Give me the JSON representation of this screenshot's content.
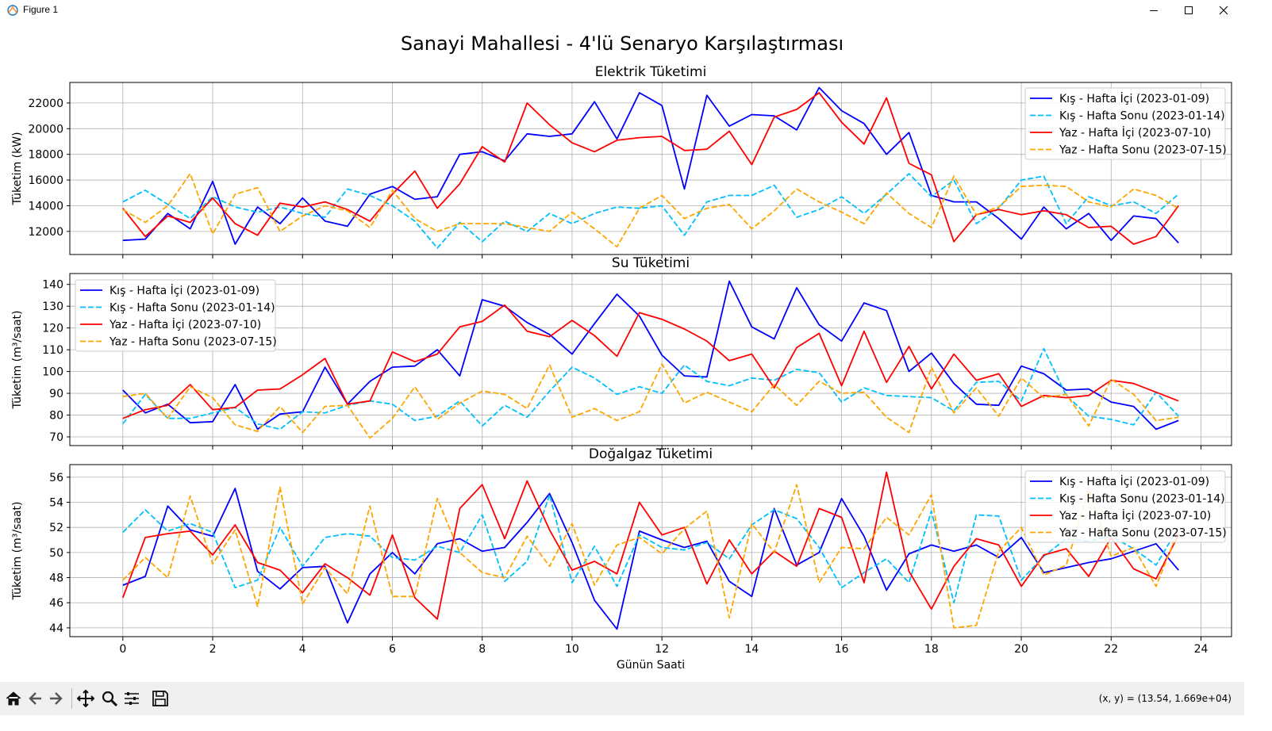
{
  "window": {
    "title": "Figure 1"
  },
  "toolbar": {
    "tools": [
      "home-icon",
      "back-icon",
      "forward-icon",
      "pan-icon",
      "zoom-icon",
      "configure-subplots-icon",
      "save-icon"
    ],
    "coords": "(x, y) = (13.54, 1.669e+04)"
  },
  "colors": {
    "kis_hafta_ici": "#0000ff",
    "kis_hafta_sonu": "#00bfff",
    "yaz_hafta_ici": "#ff0000",
    "yaz_hafta_sonu": "#ffa500"
  },
  "chart_data": {
    "suptitle": "Sanayi Mahallesi - 4'lü Senaryo Karşılaştırması",
    "xlabel": "Günün Saati",
    "x": [
      0,
      0.5,
      1,
      1.5,
      2,
      2.5,
      3,
      3.5,
      4,
      4.5,
      5,
      5.5,
      6,
      6.5,
      7,
      7.5,
      8,
      8.5,
      9,
      9.5,
      10,
      10.5,
      11,
      11.5,
      12,
      12.5,
      13,
      13.5,
      14,
      14.5,
      15,
      15.5,
      16,
      16.5,
      17,
      17.5,
      18,
      18.5,
      19,
      19.5,
      20,
      20.5,
      21,
      21.5,
      22,
      22.5,
      23,
      23.5
    ],
    "xticks": [
      0,
      2,
      4,
      6,
      8,
      10,
      12,
      14,
      16,
      18,
      20,
      22,
      24
    ],
    "xlim": [
      -1.18,
      24.68
    ],
    "legend_labels": [
      "Kış - Hafta İçi (2023-01-09)",
      "Kış - Hafta Sonu (2023-01-14)",
      "Yaz - Hafta İçi (2023-07-10)",
      "Yaz - Hafta Sonu (2023-07-15)"
    ],
    "series_styles": [
      {
        "color": "#0000ff",
        "dash": "solid"
      },
      {
        "color": "#00bfff",
        "dash": "dashed"
      },
      {
        "color": "#ff0000",
        "dash": "solid"
      },
      {
        "color": "#ffa500",
        "dash": "dashed"
      }
    ],
    "subplots": [
      {
        "type": "line",
        "title": "Elektrik Tüketimi",
        "ylabel": "Tüketim (kW)",
        "ylim": [
          10200,
          23600
        ],
        "yticks": [
          12000,
          14000,
          16000,
          18000,
          20000,
          22000
        ],
        "legend": "upper-right",
        "series": [
          {
            "values": [
              11300,
              11400,
              13400,
              12200,
              15900,
              11000,
              13900,
              12600,
              14600,
              12800,
              12400,
              14900,
              15500,
              14500,
              14700,
              18000,
              18200,
              17500,
              19600,
              19400,
              19600,
              22100,
              19200,
              22800,
              21800,
              15300,
              22600,
              20200,
              21100,
              21000,
              19900,
              23200,
              21400,
              20400,
              18000,
              19700,
              14800,
              14300,
              14300,
              13000,
              11400,
              13900,
              12200,
              13400,
              11300,
              13200,
              13000,
              11100
            ]
          },
          {
            "values": [
              14300,
              15200,
              14100,
              13000,
              14700,
              13900,
              13500,
              13900,
              13400,
              13100,
              15300,
              14800,
              14000,
              12800,
              10700,
              12700,
              11200,
              12800,
              12000,
              13400,
              12600,
              13400,
              13900,
              13800,
              14000,
              11700,
              14300,
              14800,
              14800,
              15600,
              13100,
              13700,
              14700,
              13400,
              14900,
              16500,
              14700,
              16000,
              12600,
              13800,
              16000,
              16300,
              12600,
              14700,
              14000,
              14300,
              13400,
              14900
            ]
          },
          {
            "values": [
              13800,
              11600,
              13200,
              12700,
              14600,
              12600,
              11700,
              14200,
              13900,
              14300,
              13700,
              12800,
              14900,
              16700,
              13800,
              15700,
              18600,
              17400,
              22000,
              20300,
              18900,
              18200,
              19100,
              19300,
              19400,
              18300,
              18400,
              19800,
              17200,
              20900,
              21500,
              22800,
              20500,
              18800,
              22400,
              17300,
              16400,
              11200,
              13300,
              13700,
              13300,
              13600,
              13300,
              12300,
              12400,
              11000,
              11600,
              14000
            ]
          },
          {
            "values": [
              13700,
              12700,
              14000,
              16500,
              11800,
              14900,
              15400,
              12000,
              13200,
              14000,
              13600,
              12300,
              15200,
              13000,
              12000,
              12600,
              12600,
              12600,
              12300,
              12000,
              13500,
              12200,
              10800,
              13800,
              14800,
              13000,
              13800,
              14100,
              12200,
              13600,
              15300,
              14300,
              13500,
              12600,
              15000,
              13400,
              12300,
              16300,
              13300,
              13900,
              15500,
              15600,
              15500,
              14300,
              13900,
              15300,
              14800,
              13800
            ]
          }
        ]
      },
      {
        "type": "line",
        "title": "Su Tüketimi",
        "ylabel": "Tüketim (m³/saat)",
        "ylim": [
          66,
          145
        ],
        "yticks": [
          70,
          80,
          90,
          100,
          110,
          120,
          130,
          140
        ],
        "legend": "upper-left",
        "series": [
          {
            "values": [
              91.5,
              81,
              85,
              76.5,
              77,
              94,
              73.5,
              80.5,
              81.5,
              102,
              85,
              95.5,
              102,
              102.5,
              110,
              98,
              133,
              130,
              122.5,
              117,
              108,
              122,
              135.5,
              125.5,
              107.5,
              98,
              97.5,
              141.5,
              120.5,
              115,
              138.5,
              121.5,
              114,
              131.5,
              128,
              100,
              108.5,
              94.5,
              85,
              84.5,
              102.5,
              99,
              91.5,
              92,
              86,
              84,
              73.5,
              77.5
            ]
          },
          {
            "values": [
              76,
              89.5,
              78.5,
              78.5,
              81,
              83.5,
              76,
              73.5,
              81.5,
              81,
              84.5,
              86.5,
              85,
              77.5,
              79.5,
              86.5,
              75,
              84.5,
              79,
              91,
              102,
              97,
              89.5,
              93,
              90,
              103,
              95.5,
              93.5,
              97,
              96,
              101,
              99.5,
              86,
              92.5,
              89,
              88.5,
              88,
              82,
              95,
              95.5,
              86.5,
              110.5,
              89,
              79.5,
              78,
              75.5,
              90.5,
              79.5
            ]
          },
          {
            "values": [
              78.5,
              82.5,
              84.5,
              94,
              82.5,
              83.5,
              91.5,
              92,
              98.5,
              106,
              85,
              86.5,
              109,
              104.5,
              108,
              120.5,
              123,
              130.5,
              118.5,
              116,
              123.5,
              116.5,
              107,
              127,
              124,
              119.5,
              114,
              105,
              108,
              92.5,
              111,
              117.5,
              93.5,
              118.5,
              95,
              111.5,
              92,
              108,
              96,
              99,
              84,
              89,
              88,
              89,
              96,
              94.5,
              90.5,
              86.5
            ]
          },
          {
            "values": [
              88.5,
              90,
              78.5,
              93,
              88,
              75.5,
              72.5,
              84,
              72,
              84,
              84.5,
              69.5,
              78.5,
              93,
              78,
              85.5,
              91,
              89.5,
              83,
              103,
              79,
              83,
              77.5,
              81.5,
              103.5,
              85.5,
              90.5,
              86,
              81.5,
              94,
              84.5,
              95.5,
              90,
              90.5,
              79,
              72,
              102,
              81,
              92.5,
              79.5,
              97,
              88,
              89.5,
              75,
              96.5,
              89.5,
              77.5,
              79
            ]
          }
        ]
      },
      {
        "type": "line",
        "title": "Doğalgaz Tüketimi",
        "ylabel": "Tüketim (m³/saat)",
        "ylim": [
          43.3,
          57.0
        ],
        "yticks": [
          44,
          46,
          48,
          50,
          52,
          54,
          56
        ],
        "legend": "upper-right",
        "series": [
          {
            "values": [
              47.4,
              48.1,
              53.7,
              51.8,
              51.3,
              55.1,
              48.5,
              47.1,
              48.8,
              48.9,
              44.4,
              48.3,
              50.0,
              48.3,
              50.7,
              51.1,
              50.1,
              50.4,
              52.4,
              54.7,
              50.8,
              46.2,
              43.9,
              51.7,
              51.0,
              50.4,
              50.9,
              47.7,
              46.5,
              53.5,
              49.0,
              50.0,
              54.3,
              51.3,
              47.0,
              49.9,
              50.6,
              50.1,
              50.6,
              49.6,
              51.2,
              48.4,
              48.8,
              49.2,
              49.5,
              50.1,
              50.7,
              48.6
            ]
          },
          {
            "values": [
              51.6,
              53.4,
              51.7,
              52.3,
              51.6,
              47.2,
              47.8,
              52.0,
              48.9,
              51.2,
              51.5,
              51.3,
              49.6,
              49.4,
              50.5,
              50.0,
              53.0,
              47.7,
              49.3,
              54.6,
              47.6,
              50.5,
              47.3,
              51.4,
              50.4,
              50.2,
              50.8,
              49.5,
              52.2,
              53.4,
              52.7,
              50.4,
              47.2,
              48.4,
              49.5,
              47.6,
              53.3,
              46.0,
              53.0,
              52.9,
              47.8,
              49.7,
              51.1,
              50.9,
              51.3,
              50.3,
              49.0,
              52.0
            ]
          },
          {
            "values": [
              46.4,
              51.2,
              51.5,
              51.7,
              49.8,
              52.2,
              49.2,
              48.6,
              46.8,
              49.1,
              48.0,
              46.6,
              51.4,
              46.4,
              44.7,
              53.5,
              55.4,
              51.1,
              55.7,
              51.8,
              48.6,
              49.3,
              48.3,
              54.0,
              51.4,
              52.0,
              47.5,
              51.0,
              48.3,
              50.1,
              48.9,
              53.5,
              52.8,
              47.6,
              56.4,
              48.5,
              45.5,
              48.9,
              51.1,
              50.6,
              47.3,
              49.8,
              50.3,
              48.1,
              51.2,
              48.7,
              47.9,
              51.4
            ]
          },
          {
            "values": [
              47.8,
              49.6,
              48.0,
              54.5,
              49.1,
              51.8,
              45.7,
              55.2,
              45.9,
              48.8,
              46.7,
              53.7,
              46.5,
              46.5,
              54.3,
              50.0,
              48.4,
              48.0,
              51.3,
              48.9,
              52.3,
              47.4,
              50.6,
              51.2,
              49.9,
              51.9,
              53.3,
              44.8,
              52.3,
              50.0,
              55.4,
              47.6,
              50.4,
              50.3,
              52.8,
              51.4,
              54.6,
              44.0,
              44.2,
              50.1,
              52.0,
              48.2,
              49.0,
              55.0,
              49.7,
              50.4,
              47.3,
              51.8
            ]
          }
        ]
      }
    ]
  }
}
